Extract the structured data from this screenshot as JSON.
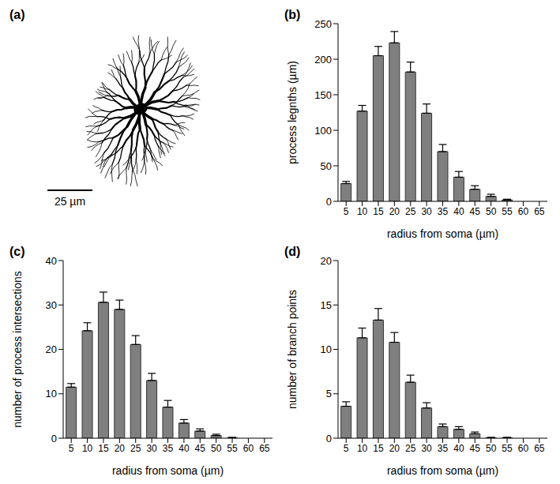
{
  "image": {
    "label": "(a)",
    "scale_bar": {
      "value": 25,
      "label": "25 µm"
    }
  },
  "chart_data": [
    {
      "type": "bar",
      "title": "(b)",
      "x_label": "radius from soma (µm)",
      "y_label": "process legnths (µm)",
      "categories": [
        5,
        10,
        15,
        20,
        25,
        30,
        35,
        40,
        45,
        50,
        55,
        60,
        65
      ],
      "values": [
        25,
        127,
        205,
        223,
        182,
        124,
        70,
        34,
        17,
        7,
        2,
        0,
        0
      ],
      "errors": [
        3,
        8,
        13,
        16,
        14,
        13,
        10,
        8,
        5,
        3,
        1,
        0,
        0
      ],
      "color": "#7f7f7f",
      "ylim": [
        0,
        250
      ],
      "yticks": [
        0,
        50,
        100,
        150,
        200,
        250
      ]
    },
    {
      "type": "bar",
      "title": "(c)",
      "x_label": "radius from soma (µm)",
      "y_label": "number of process intersections",
      "categories": [
        5,
        10,
        15,
        20,
        25,
        30,
        35,
        40,
        45,
        50,
        55,
        60,
        65
      ],
      "values": [
        11.5,
        24.2,
        30.6,
        29,
        21.1,
        13,
        7,
        3.4,
        1.6,
        0.6,
        0.1,
        0,
        0
      ],
      "errors": [
        0.8,
        1.8,
        2.3,
        2.1,
        2,
        1.6,
        1.5,
        0.8,
        0.5,
        0.3,
        0.1,
        0,
        0
      ],
      "color": "#7f7f7f",
      "ylim": [
        0,
        40
      ],
      "yticks": [
        0,
        10,
        20,
        30,
        40
      ]
    },
    {
      "type": "bar",
      "title": "(d)",
      "x_label": "radius from soma (µm)",
      "y_label": "number of branch points",
      "categories": [
        5,
        10,
        15,
        20,
        25,
        30,
        35,
        40,
        45,
        50,
        55,
        60,
        65
      ],
      "values": [
        3.6,
        11.3,
        13.3,
        10.8,
        6.3,
        3.4,
        1.3,
        1,
        0.5,
        0.05,
        0.05,
        0,
        0
      ],
      "errors": [
        0.5,
        1.1,
        1.3,
        1.1,
        0.8,
        0.6,
        0.3,
        0.3,
        0.2,
        0.05,
        0.05,
        0,
        0
      ],
      "color": "#7f7f7f",
      "ylim": [
        0,
        20
      ],
      "yticks": [
        0,
        5,
        10,
        15,
        20
      ]
    }
  ]
}
